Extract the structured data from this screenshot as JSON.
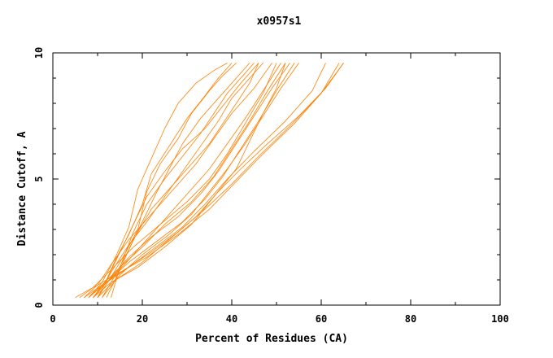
{
  "chart_data": {
    "type": "line",
    "title": "x0957s1",
    "xlabel": "Percent of Residues (CA)",
    "ylabel": "Distance Cutoff, A",
    "xlim": [
      0,
      100
    ],
    "ylim": [
      0,
      10
    ],
    "xticks": [
      "0",
      "20",
      "40",
      "60",
      "80",
      "100"
    ],
    "yticks": [
      "0",
      "5",
      "10"
    ],
    "x_tick_values": [
      0,
      20,
      40,
      60,
      80,
      100
    ],
    "y_tick_values": [
      0,
      5,
      10
    ],
    "grid": false,
    "legend": "none",
    "series_color": "#ff8000",
    "series": [
      {
        "x": [
          9,
          12,
          14,
          17,
          20,
          22,
          26,
          30,
          34,
          37,
          40
        ],
        "y": [
          0.3,
          1.0,
          1.8,
          2.8,
          4.0,
          5.2,
          6.3,
          7.4,
          8.3,
          9.0,
          9.6
        ]
      },
      {
        "x": [
          10,
          13,
          16,
          19,
          21,
          24,
          28,
          31,
          35,
          38,
          41
        ],
        "y": [
          0.3,
          1.1,
          2.0,
          3.0,
          4.5,
          5.6,
          6.6,
          7.6,
          8.5,
          9.1,
          9.6
        ]
      },
      {
        "x": [
          8,
          11,
          14,
          17,
          19,
          22,
          25,
          28,
          32,
          36,
          39
        ],
        "y": [
          0.3,
          0.9,
          1.9,
          3.1,
          4.6,
          5.8,
          7.0,
          8.0,
          8.8,
          9.3,
          9.6
        ]
      },
      {
        "x": [
          11,
          14,
          17,
          20,
          23,
          26,
          29,
          33,
          37,
          41,
          44
        ],
        "y": [
          0.3,
          1.2,
          2.2,
          3.3,
          4.4,
          5.4,
          6.4,
          7.4,
          8.2,
          9.0,
          9.6
        ]
      },
      {
        "x": [
          9,
          12,
          15,
          18,
          21,
          25,
          29,
          34,
          38,
          42,
          46
        ],
        "y": [
          0.3,
          1.0,
          2.1,
          3.2,
          4.3,
          5.3,
          6.2,
          7.0,
          7.9,
          8.8,
          9.6
        ]
      },
      {
        "x": [
          10,
          13,
          17,
          21,
          25,
          29,
          33,
          37,
          40,
          44,
          47
        ],
        "y": [
          0.3,
          1.3,
          2.4,
          3.3,
          4.3,
          5.3,
          6.3,
          7.3,
          8.2,
          9.0,
          9.6
        ]
      },
      {
        "x": [
          7,
          10,
          13,
          17,
          22,
          27,
          32,
          36,
          40,
          45,
          49
        ],
        "y": [
          0.3,
          0.8,
          1.6,
          2.6,
          3.6,
          4.6,
          5.6,
          6.6,
          7.6,
          8.6,
          9.6
        ]
      },
      {
        "x": [
          9,
          12,
          16,
          20,
          25,
          30,
          35,
          39,
          43,
          47,
          51
        ],
        "y": [
          0.3,
          0.9,
          1.6,
          2.4,
          3.4,
          4.4,
          5.4,
          6.4,
          7.4,
          8.5,
          9.6
        ]
      },
      {
        "x": [
          8,
          11,
          15,
          20,
          25,
          31,
          36,
          40,
          44,
          48,
          52
        ],
        "y": [
          0.3,
          0.8,
          1.5,
          2.3,
          3.2,
          4.1,
          5.1,
          6.2,
          7.3,
          8.5,
          9.6
        ]
      },
      {
        "x": [
          6,
          9,
          13,
          18,
          24,
          30,
          35,
          39,
          43,
          47,
          50
        ],
        "y": [
          0.3,
          0.7,
          1.4,
          2.3,
          3.2,
          4.1,
          5.0,
          6.0,
          7.2,
          8.4,
          9.6
        ]
      },
      {
        "x": [
          10,
          13,
          17,
          22,
          28,
          33,
          37,
          41,
          45,
          49,
          53
        ],
        "y": [
          0.3,
          1.1,
          1.9,
          2.7,
          3.5,
          4.4,
          5.3,
          6.4,
          7.5,
          8.6,
          9.6
        ]
      },
      {
        "x": [
          9,
          12,
          17,
          23,
          29,
          34,
          38,
          42,
          46,
          50,
          54
        ],
        "y": [
          0.3,
          0.9,
          1.7,
          2.5,
          3.3,
          4.2,
          5.1,
          6.2,
          7.3,
          8.5,
          9.6
        ]
      },
      {
        "x": [
          11,
          15,
          20,
          26,
          31,
          35,
          39,
          43,
          47,
          51,
          55
        ],
        "y": [
          0.3,
          1.2,
          2.0,
          2.8,
          3.6,
          4.5,
          5.4,
          6.4,
          7.5,
          8.6,
          9.6
        ]
      },
      {
        "x": [
          8,
          12,
          17,
          23,
          29,
          34,
          39,
          45,
          52,
          58,
          61
        ],
        "y": [
          0.3,
          0.9,
          1.5,
          2.3,
          3.1,
          4.0,
          5.0,
          6.1,
          7.3,
          8.5,
          9.6
        ]
      },
      {
        "x": [
          7,
          11,
          16,
          22,
          28,
          34,
          40,
          46,
          53,
          60,
          65
        ],
        "y": [
          0.3,
          0.8,
          1.4,
          2.1,
          2.9,
          3.8,
          4.8,
          5.9,
          7.1,
          8.4,
          9.6
        ]
      },
      {
        "x": [
          5,
          9,
          14,
          21,
          28,
          35,
          41,
          47,
          54,
          60,
          64
        ],
        "y": [
          0.3,
          0.7,
          1.2,
          1.9,
          2.8,
          3.8,
          4.9,
          6.0,
          7.2,
          8.4,
          9.6
        ]
      },
      {
        "x": [
          10,
          14,
          20,
          26,
          32,
          37,
          42,
          48,
          55,
          61,
          65
        ],
        "y": [
          0.3,
          1.0,
          1.7,
          2.6,
          3.5,
          4.5,
          5.4,
          6.4,
          7.5,
          8.6,
          9.6
        ]
      },
      {
        "x": [
          9,
          13,
          19,
          25,
          31,
          36,
          41,
          44,
          47,
          50,
          52
        ],
        "y": [
          0.3,
          0.9,
          1.5,
          2.3,
          3.2,
          4.3,
          5.4,
          6.5,
          7.6,
          8.6,
          9.6
        ]
      },
      {
        "x": [
          12,
          15,
          18,
          22,
          27,
          31,
          35,
          38,
          41,
          44,
          46
        ],
        "y": [
          0.3,
          1.4,
          2.6,
          3.8,
          4.8,
          5.6,
          6.4,
          7.2,
          8.0,
          8.8,
          9.6
        ]
      },
      {
        "x": [
          13,
          15,
          18,
          21,
          25,
          29,
          33,
          36,
          39,
          42,
          45
        ],
        "y": [
          0.3,
          1.5,
          2.9,
          4.0,
          5.0,
          5.9,
          6.8,
          7.6,
          8.4,
          9.0,
          9.6
        ]
      }
    ]
  }
}
